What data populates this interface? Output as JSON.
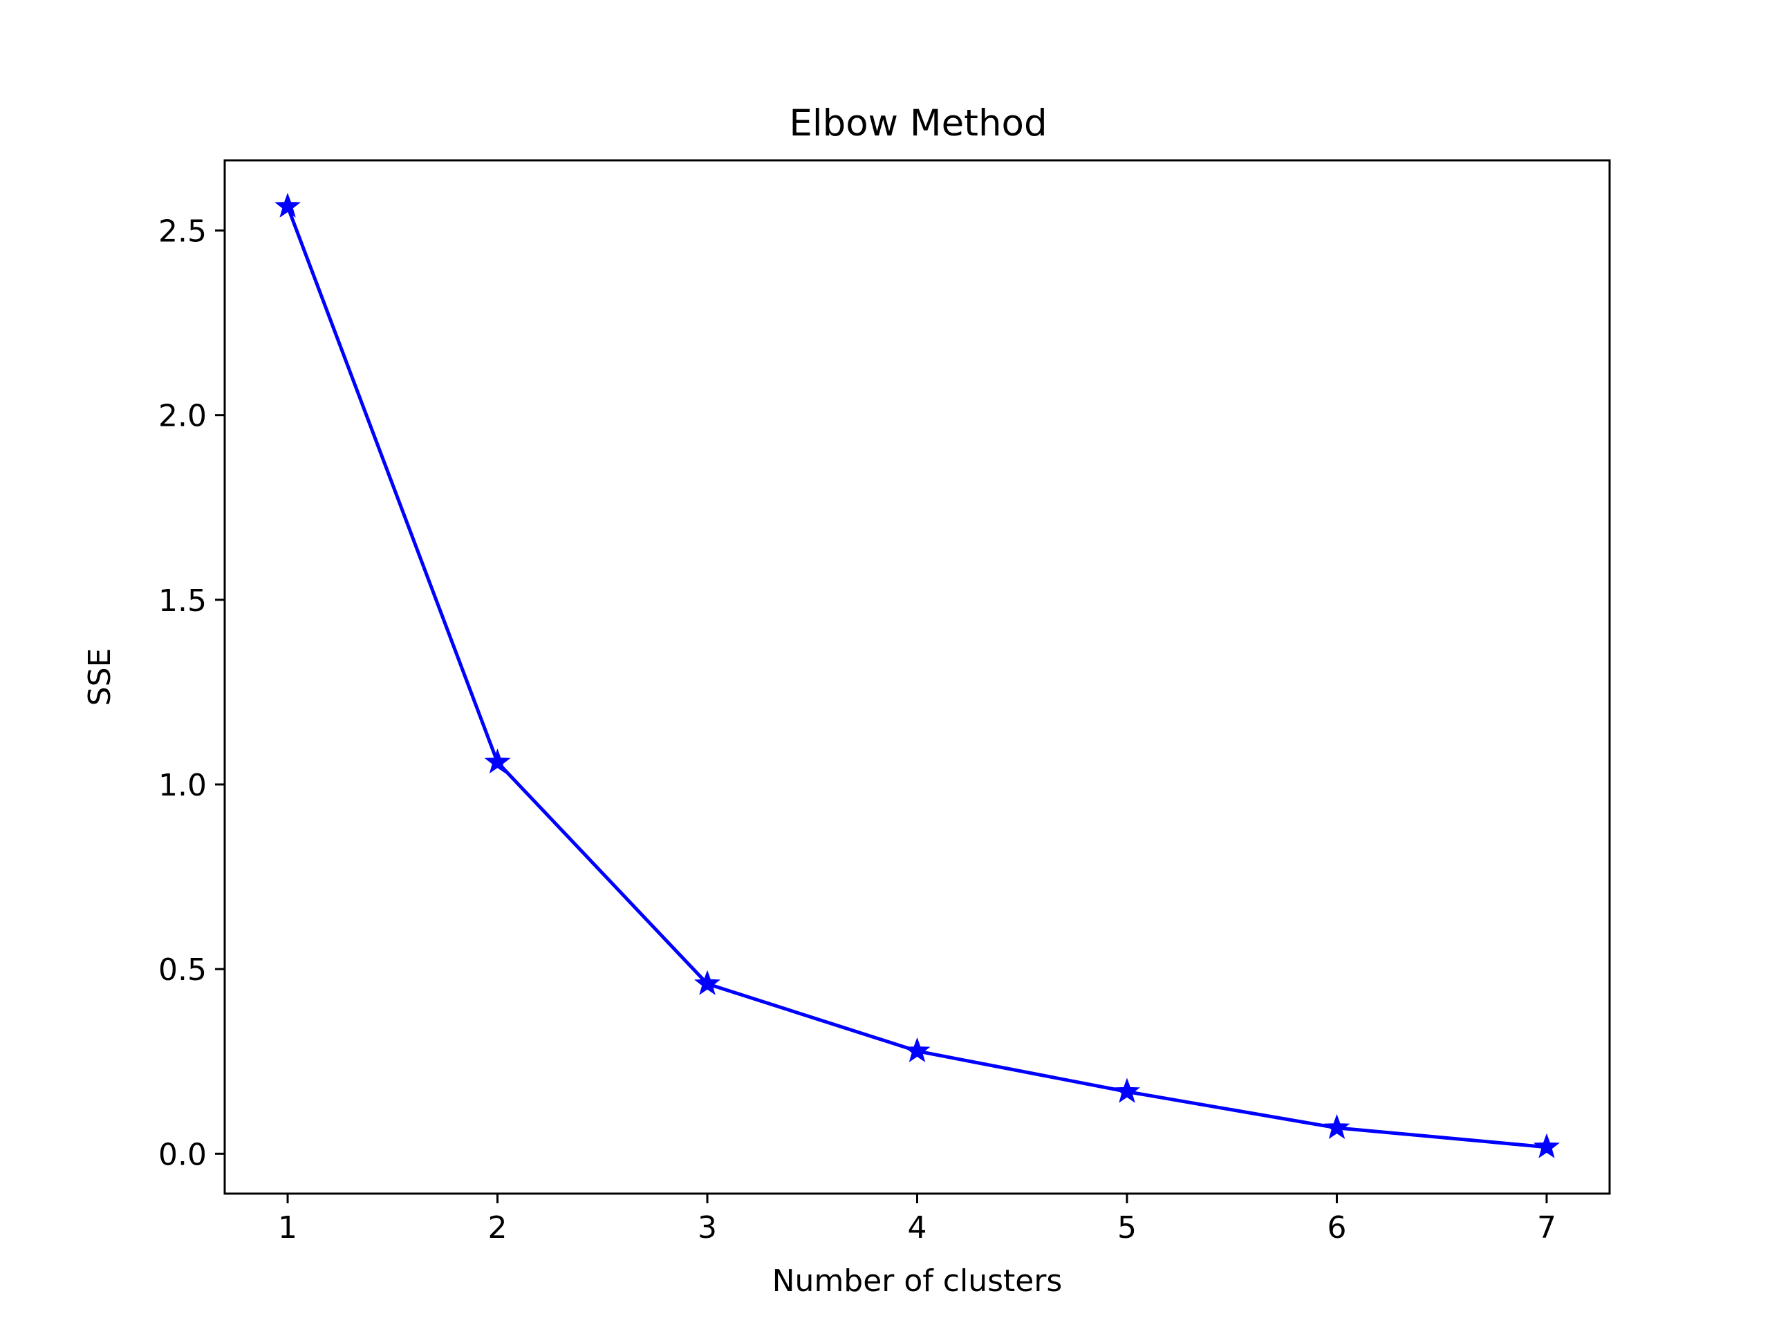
{
  "chart_data": {
    "type": "line",
    "title": "Elbow Method",
    "xlabel": "Number of clusters",
    "ylabel": "SSE",
    "xlim": [
      0.7,
      7.3
    ],
    "ylim": [
      -0.108,
      2.69
    ],
    "xticks": [
      1,
      2,
      3,
      4,
      5,
      6,
      7
    ],
    "xtick_labels": [
      "1",
      "2",
      "3",
      "4",
      "5",
      "6",
      "7"
    ],
    "yticks": [
      0.0,
      0.5,
      1.0,
      1.5,
      2.0,
      2.5
    ],
    "ytick_labels": [
      "0.0",
      "0.5",
      "1.0",
      "1.5",
      "2.0",
      "2.5"
    ],
    "grid": false,
    "series": [
      {
        "x": [
          1,
          2,
          3,
          4,
          5,
          6,
          7
        ],
        "values": [
          2.565,
          1.06,
          0.46,
          0.278,
          0.168,
          0.07,
          0.018
        ],
        "color": "#0000ff",
        "marker": "star"
      }
    ]
  }
}
